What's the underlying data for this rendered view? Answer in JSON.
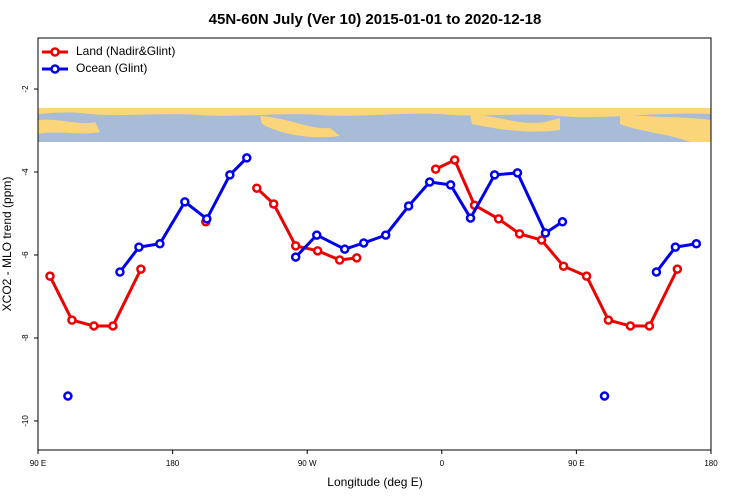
{
  "chart_data": {
    "type": "line",
    "title": "45N-60N July (Ver 10)   2015-01-01 to 2020-12-18",
    "x_label": "Longitude (deg E)",
    "y_label": "XCO2 - MLO trend (ppm)",
    "xlim": [
      90,
      540
    ],
    "ylim": [
      -10.7,
      -0.77
    ],
    "xticks": [
      {
        "value": 90,
        "label": "90 E"
      },
      180,
      {
        "value": 270,
        "label": "90 W"
      },
      {
        "value": 360,
        "label": "0"
      },
      {
        "value": 450,
        "label": "90 E"
      },
      {
        "value": 540,
        "label": "180"
      }
    ],
    "yticks": [
      -2,
      -4,
      -6,
      -8,
      -10
    ],
    "legend": "top-left",
    "series": [
      {
        "name": "Land (Nadir&Glint)",
        "color": "#ee0000",
        "x": [
          98,
          112.7,
          127.4,
          140.1,
          158.8,
          null,
          202.2,
          null,
          236.3,
          247.6,
          262.3,
          277,
          291.7,
          303.1,
          null,
          355.9,
          368.6,
          381.9,
          398,
          412,
          426.7,
          441.4,
          456.8,
          471.4,
          486.1,
          498.8,
          517.5
        ],
        "values": [
          -6.51,
          -7.57,
          -7.71,
          -7.71,
          -6.34,
          null,
          -5.2,
          null,
          -4.39,
          -4.77,
          -5.78,
          -5.9,
          -6.12,
          -6.07,
          null,
          -3.93,
          -3.71,
          -4.8,
          -5.13,
          -5.49,
          -5.64,
          -6.27,
          -6.51,
          -7.57,
          -7.71,
          -7.71,
          -6.34
        ]
      },
      {
        "name": "Ocean (Glint)",
        "color": "#0000ee",
        "x": [
          110,
          null,
          144.8,
          157.5,
          171.5,
          188.2,
          202.9,
          218.3,
          229.6,
          null,
          262.3,
          276.4,
          295.1,
          307.8,
          322.5,
          337.8,
          351.9,
          365.9,
          379.2,
          395.3,
          410.6,
          429.3,
          440.7,
          null,
          468.8,
          null,
          503.5,
          516.2,
          530.2
        ],
        "values": [
          -9.4,
          null,
          -6.41,
          -5.81,
          -5.73,
          -4.72,
          -5.13,
          -4.07,
          -3.66,
          null,
          -6.05,
          -5.52,
          -5.86,
          -5.71,
          -5.52,
          -4.82,
          -4.24,
          -4.31,
          -5.11,
          -4.07,
          -4.02,
          -5.47,
          -5.2,
          null,
          -9.4,
          null,
          -6.41,
          -5.81,
          -5.73
        ]
      }
    ]
  }
}
